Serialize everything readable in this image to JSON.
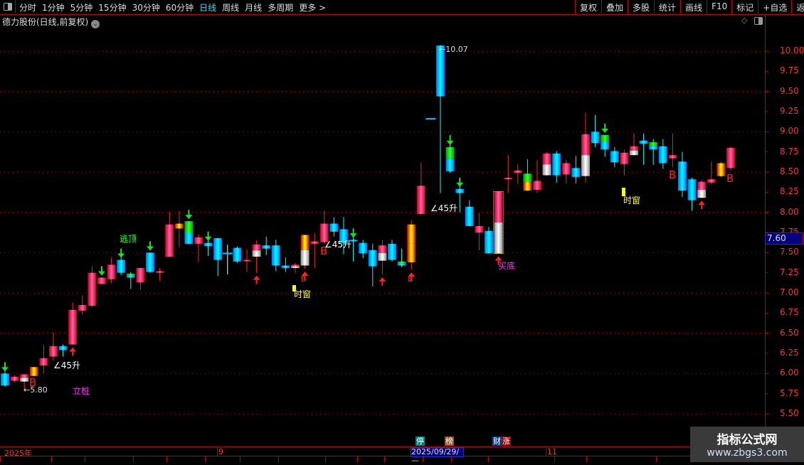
{
  "toolbar": {
    "periods": [
      "分时",
      "1分钟",
      "5分钟",
      "15分钟",
      "30分钟",
      "60分钟",
      "日线",
      "周线",
      "月线",
      "多周期",
      "更多 >"
    ],
    "active_period": "日线",
    "right_buttons": [
      "复权",
      "叠加",
      "多股",
      "统计",
      "画线",
      "F10",
      "标记",
      "+自选",
      "返回"
    ]
  },
  "title": "德力股份(日线,前复权)",
  "y_axis": {
    "labels": [
      "10.00",
      "9.75",
      "9.50",
      "9.25",
      "9.00",
      "8.75",
      "8.50",
      "8.25",
      "8.00",
      "7.75",
      "7.50",
      "7.25",
      "7.00",
      "6.75",
      "6.50",
      "6.25",
      "6.00",
      "5.75",
      "5.50"
    ],
    "current_price": "7.60"
  },
  "x_axis": {
    "labels": [
      "2025年",
      "9",
      "11"
    ],
    "selected_date": "2025/09/29/—"
  },
  "badges": [
    {
      "text": "停",
      "color": "#008080"
    },
    {
      "text": "榜",
      "color": "#a05010"
    },
    {
      "text": "财",
      "color": "#104080"
    },
    {
      "text": "涨",
      "color": "#a00000"
    }
  ],
  "watermark": {
    "title": "指标公式网",
    "url": "www.zbgs3.com"
  },
  "colors": {
    "up": "#ff2a5a",
    "down": "#00e0ff",
    "axis": "#ff3030",
    "grid": "#c00000"
  },
  "chart_data": {
    "type": "candlestick",
    "ylim": [
      5.4,
      10.2
    ],
    "candles": [
      {
        "o": 6.0,
        "h": 6.07,
        "l": 5.84,
        "c": 5.85,
        "s": "down"
      },
      {
        "o": 5.91,
        "h": 5.98,
        "l": 5.89,
        "c": 5.96,
        "s": "up"
      },
      {
        "o": 5.9,
        "h": 5.99,
        "l": 5.8,
        "c": 5.99,
        "s": "upwhite"
      },
      {
        "o": 5.97,
        "h": 6.08,
        "l": 5.97,
        "c": 6.08,
        "s": "upyellow"
      },
      {
        "o": 6.1,
        "h": 6.35,
        "l": 6.0,
        "c": 6.19,
        "s": "up"
      },
      {
        "o": 6.21,
        "h": 6.51,
        "l": 6.16,
        "c": 6.34,
        "s": "up"
      },
      {
        "o": 6.34,
        "h": 6.36,
        "l": 6.21,
        "c": 6.29,
        "s": "down"
      },
      {
        "o": 6.36,
        "h": 6.88,
        "l": 6.36,
        "c": 6.79,
        "s": "up"
      },
      {
        "o": 6.78,
        "h": 6.97,
        "l": 6.73,
        "c": 6.85,
        "s": "up"
      },
      {
        "o": 6.84,
        "h": 7.33,
        "l": 6.82,
        "c": 7.25,
        "s": "up"
      },
      {
        "o": 7.11,
        "h": 7.19,
        "l": 7.11,
        "c": 7.19,
        "s": "up"
      },
      {
        "o": 7.17,
        "h": 7.44,
        "l": 7.12,
        "c": 7.35,
        "s": "up"
      },
      {
        "o": 7.41,
        "h": 7.44,
        "l": 7.22,
        "c": 7.25,
        "s": "down"
      },
      {
        "o": 7.24,
        "h": 7.26,
        "l": 7.05,
        "c": 7.19,
        "s": "downgreen"
      },
      {
        "o": 7.13,
        "h": 7.31,
        "l": 7.04,
        "c": 7.31,
        "s": "up"
      },
      {
        "o": 7.5,
        "h": 7.5,
        "l": 7.25,
        "c": 7.26,
        "s": "down"
      },
      {
        "o": 7.25,
        "h": 7.31,
        "l": 7.15,
        "c": 7.27,
        "s": "up"
      },
      {
        "o": 7.45,
        "h": 8.01,
        "l": 7.45,
        "c": 7.85,
        "s": "up"
      },
      {
        "o": 7.8,
        "h": 8.02,
        "l": 7.57,
        "c": 7.86,
        "s": "upyellow"
      },
      {
        "o": 7.89,
        "h": 7.89,
        "l": 7.61,
        "c": 7.61,
        "s": "downgreen"
      },
      {
        "o": 7.61,
        "h": 7.73,
        "l": 7.38,
        "c": 7.69,
        "s": "up"
      },
      {
        "o": 7.62,
        "h": 7.7,
        "l": 7.46,
        "c": 7.58,
        "s": "down"
      },
      {
        "o": 7.68,
        "h": 7.68,
        "l": 7.21,
        "c": 7.41,
        "s": "down"
      },
      {
        "o": 7.49,
        "h": 7.6,
        "l": 7.23,
        "c": 7.49,
        "s": "doji"
      },
      {
        "o": 7.56,
        "h": 7.58,
        "l": 7.37,
        "c": 7.39,
        "s": "down"
      },
      {
        "o": 7.4,
        "h": 7.54,
        "l": 7.26,
        "c": 7.41,
        "s": "up"
      },
      {
        "o": 7.45,
        "h": 7.65,
        "l": 7.25,
        "c": 7.6,
        "s": "upwhite"
      },
      {
        "o": 7.59,
        "h": 7.7,
        "l": 7.47,
        "c": 7.55,
        "s": "down"
      },
      {
        "o": 7.59,
        "h": 7.66,
        "l": 7.27,
        "c": 7.34,
        "s": "down"
      },
      {
        "o": 7.34,
        "h": 7.44,
        "l": 7.26,
        "c": 7.31,
        "s": "down"
      },
      {
        "o": 7.31,
        "h": 7.37,
        "l": 7.25,
        "c": 7.35,
        "s": "upwhite"
      },
      {
        "o": 7.34,
        "h": 7.72,
        "l": 7.3,
        "c": 7.72,
        "s": "upyellowwhite"
      },
      {
        "o": 7.61,
        "h": 7.74,
        "l": 7.31,
        "c": 7.64,
        "s": "up"
      },
      {
        "o": 7.63,
        "h": 8.02,
        "l": 7.61,
        "c": 7.86,
        "s": "up"
      },
      {
        "o": 7.86,
        "h": 7.94,
        "l": 7.7,
        "c": 7.76,
        "s": "down"
      },
      {
        "o": 7.79,
        "h": 7.94,
        "l": 7.48,
        "c": 7.62,
        "s": "down"
      },
      {
        "o": 7.66,
        "h": 7.7,
        "l": 7.39,
        "c": 7.64,
        "s": "down"
      },
      {
        "o": 7.62,
        "h": 7.66,
        "l": 7.43,
        "c": 7.49,
        "s": "down"
      },
      {
        "o": 7.53,
        "h": 7.61,
        "l": 7.08,
        "c": 7.33,
        "s": "down"
      },
      {
        "o": 7.4,
        "h": 7.66,
        "l": 7.23,
        "c": 7.59,
        "s": "upwhite"
      },
      {
        "o": 7.61,
        "h": 7.66,
        "l": 7.39,
        "c": 7.41,
        "s": "down"
      },
      {
        "o": 7.34,
        "h": 7.55,
        "l": 7.32,
        "c": 7.39,
        "s": "downgreen"
      },
      {
        "o": 7.38,
        "h": 7.9,
        "l": 7.29,
        "c": 7.85,
        "s": "upyellow"
      },
      {
        "o": 7.98,
        "h": 8.62,
        "l": 7.98,
        "c": 8.33,
        "s": "up"
      },
      {
        "o": 9.16,
        "h": 9.16,
        "l": 9.16,
        "c": 9.16,
        "s": "doji"
      },
      {
        "o": 10.07,
        "h": 10.07,
        "l": 8.24,
        "c": 9.44,
        "s": "down"
      },
      {
        "o": 8.81,
        "h": 8.96,
        "l": 8.49,
        "c": 8.51,
        "s": "downgreen"
      },
      {
        "o": 8.29,
        "h": 8.41,
        "l": 8.0,
        "c": 8.24,
        "s": "down"
      },
      {
        "o": 8.07,
        "h": 8.15,
        "l": 7.83,
        "c": 7.83,
        "s": "down"
      },
      {
        "o": 7.75,
        "h": 7.99,
        "l": 7.53,
        "c": 7.83,
        "s": "up"
      },
      {
        "o": 7.77,
        "h": 7.82,
        "l": 7.49,
        "c": 7.49,
        "s": "down"
      },
      {
        "o": 7.49,
        "h": 8.26,
        "l": 7.49,
        "c": 8.26,
        "s": "upwhite"
      },
      {
        "o": 8.41,
        "h": 8.71,
        "l": 8.24,
        "c": 8.43,
        "s": "up"
      },
      {
        "o": 8.49,
        "h": 8.6,
        "l": 8.35,
        "c": 8.52,
        "s": "up"
      },
      {
        "o": 8.48,
        "h": 8.66,
        "l": 8.27,
        "c": 8.27,
        "s": "downyellow"
      },
      {
        "o": 8.28,
        "h": 8.65,
        "l": 8.24,
        "c": 8.39,
        "s": "up"
      },
      {
        "o": 8.46,
        "h": 8.75,
        "l": 8.46,
        "c": 8.73,
        "s": "upwhite"
      },
      {
        "o": 8.73,
        "h": 8.76,
        "l": 8.37,
        "c": 8.46,
        "s": "down"
      },
      {
        "o": 8.47,
        "h": 8.65,
        "l": 8.36,
        "c": 8.61,
        "s": "up"
      },
      {
        "o": 8.55,
        "h": 8.7,
        "l": 8.36,
        "c": 8.44,
        "s": "down"
      },
      {
        "o": 8.45,
        "h": 9.24,
        "l": 8.37,
        "c": 8.97,
        "s": "upwhite"
      },
      {
        "o": 9.0,
        "h": 9.21,
        "l": 8.81,
        "c": 8.86,
        "s": "down"
      },
      {
        "o": 8.96,
        "h": 8.96,
        "l": 8.69,
        "c": 8.78,
        "s": "downgreen"
      },
      {
        "o": 8.76,
        "h": 8.81,
        "l": 8.56,
        "c": 8.62,
        "s": "down"
      },
      {
        "o": 8.6,
        "h": 8.78,
        "l": 8.46,
        "c": 8.74,
        "s": "up"
      },
      {
        "o": 8.71,
        "h": 8.98,
        "l": 8.71,
        "c": 8.82,
        "s": "upwhite"
      },
      {
        "o": 8.89,
        "h": 8.98,
        "l": 8.59,
        "c": 8.85,
        "s": "down"
      },
      {
        "o": 8.87,
        "h": 8.91,
        "l": 8.59,
        "c": 8.78,
        "s": "downgreen"
      },
      {
        "o": 8.82,
        "h": 8.91,
        "l": 8.54,
        "c": 8.61,
        "s": "down"
      },
      {
        "o": 8.67,
        "h": 8.98,
        "l": 8.56,
        "c": 8.71,
        "s": "up"
      },
      {
        "o": 8.63,
        "h": 8.75,
        "l": 8.19,
        "c": 8.27,
        "s": "down"
      },
      {
        "o": 8.41,
        "h": 8.43,
        "l": 8.02,
        "c": 8.15,
        "s": "down"
      },
      {
        "o": 8.18,
        "h": 8.4,
        "l": 8.18,
        "c": 8.38,
        "s": "upwhite"
      },
      {
        "o": 8.37,
        "h": 8.63,
        "l": 8.35,
        "c": 8.41,
        "s": "up"
      },
      {
        "o": 8.45,
        "h": 8.63,
        "l": 8.43,
        "c": 8.61,
        "s": "upyellow"
      },
      {
        "o": 8.55,
        "h": 8.82,
        "l": 8.52,
        "c": 8.8,
        "s": "up"
      }
    ],
    "signals": {
      "down_arrows": [
        0,
        10,
        12,
        15,
        19,
        21,
        36,
        46,
        47,
        62
      ],
      "up_arrows": [
        7,
        26,
        31,
        39,
        42,
        51,
        72
      ]
    },
    "labels": [
      {
        "text": "逃顶",
        "i": 12,
        "color": "#30ff30"
      },
      {
        "text": "∠45升",
        "i": 5,
        "color": "#ffffff"
      },
      {
        "text": "∠45升",
        "i": 33,
        "color": "#ffffff"
      },
      {
        "text": "∠45升",
        "i": 45,
        "color": "#ffffff"
      },
      {
        "text": "←5.80",
        "i": 2,
        "color": "#dddddd"
      },
      {
        "text": "←10.07",
        "i": 45,
        "color": "#dddddd"
      },
      {
        "text": "时窗",
        "i": 30,
        "color": "#ffff30"
      },
      {
        "text": "时窗",
        "i": 64,
        "color": "#ffff30"
      },
      {
        "text": "立桩",
        "i": 7,
        "color": "#ff30ff"
      },
      {
        "text": "买底",
        "i": 51,
        "color": "#ff30ff"
      },
      {
        "text": "B",
        "i": 3,
        "color": "#ff2020"
      },
      {
        "text": "B",
        "i": 33,
        "color": "#ff2020"
      },
      {
        "text": "B",
        "i": 69,
        "color": "#ff2020"
      },
      {
        "text": "B",
        "i": 75,
        "color": "#ff2020"
      },
      {
        "text": "B",
        "i": 31,
        "color": "#ff2020"
      },
      {
        "text": "B",
        "i": 42,
        "color": "#ff2020"
      }
    ]
  }
}
